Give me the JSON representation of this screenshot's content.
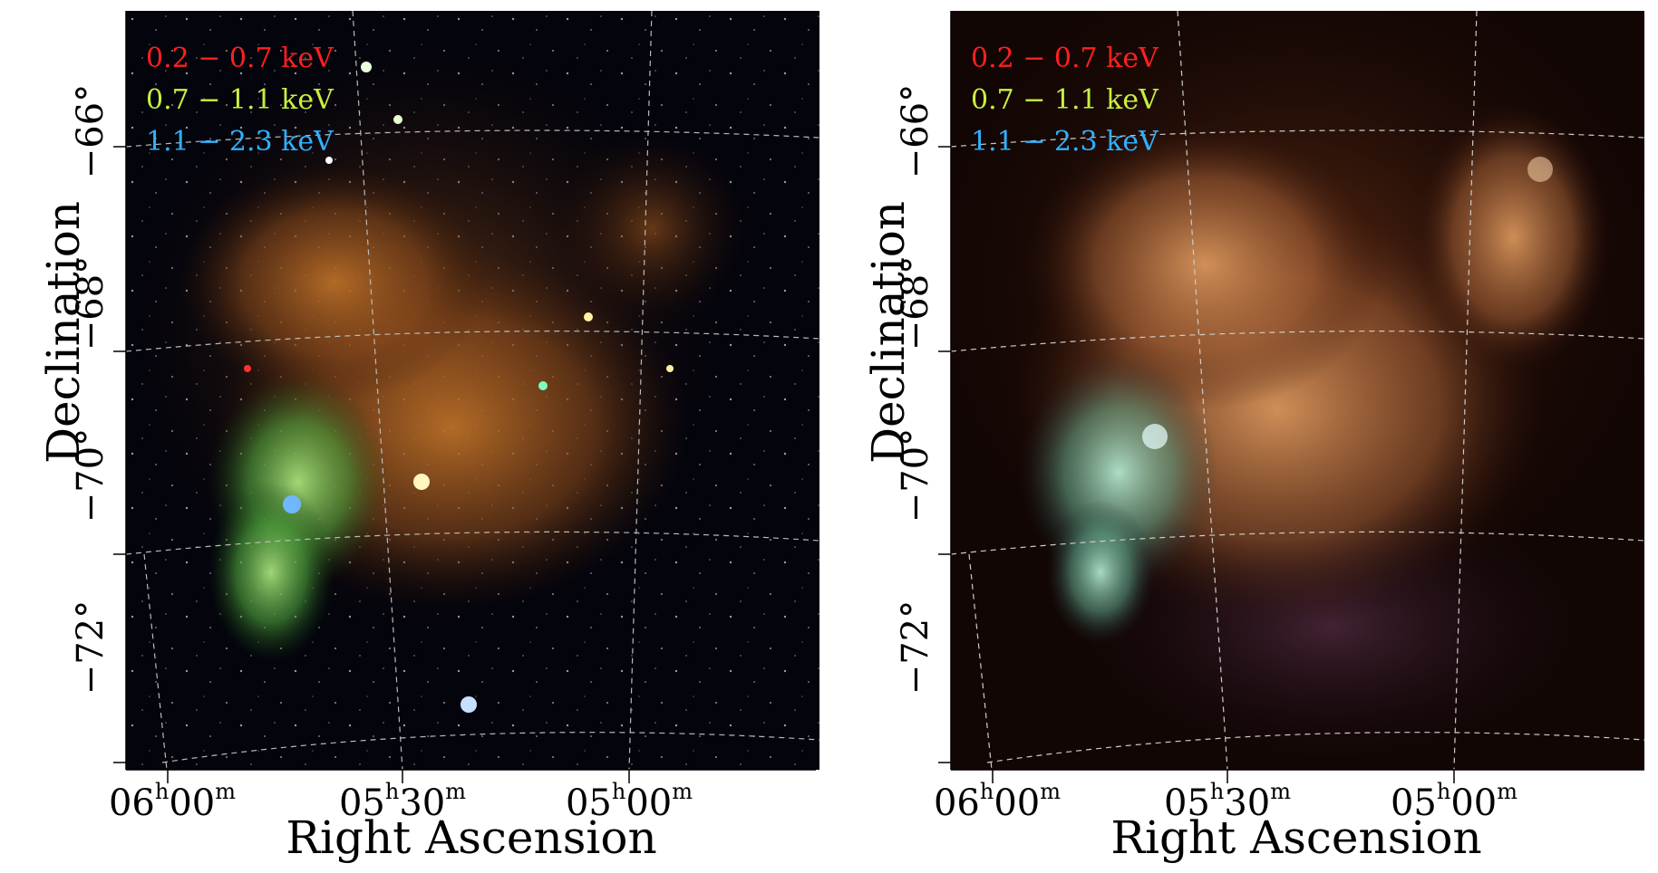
{
  "legend": [
    {
      "label": "0.2 − 0.7 keV",
      "color": "#ff2020"
    },
    {
      "label": "0.7 − 1.1 keV",
      "color": "#c8f040"
    },
    {
      "label": "1.1 − 2.3 keV",
      "color": "#30b0ff"
    }
  ],
  "axes": {
    "xlabel": "Right Ascension",
    "ylabel": "Declination",
    "yticks": [
      "−66°",
      "−68°",
      "−70°",
      "−72°"
    ],
    "xticks": [
      {
        "h": "06",
        "m": "00"
      },
      {
        "h": "05",
        "m": "30"
      },
      {
        "h": "05",
        "m": "00"
      }
    ]
  },
  "panels": [
    {
      "name": "raw-xray-image",
      "style": "unsmoothed"
    },
    {
      "name": "smoothed-xray-image",
      "style": "smoothed"
    }
  ]
}
